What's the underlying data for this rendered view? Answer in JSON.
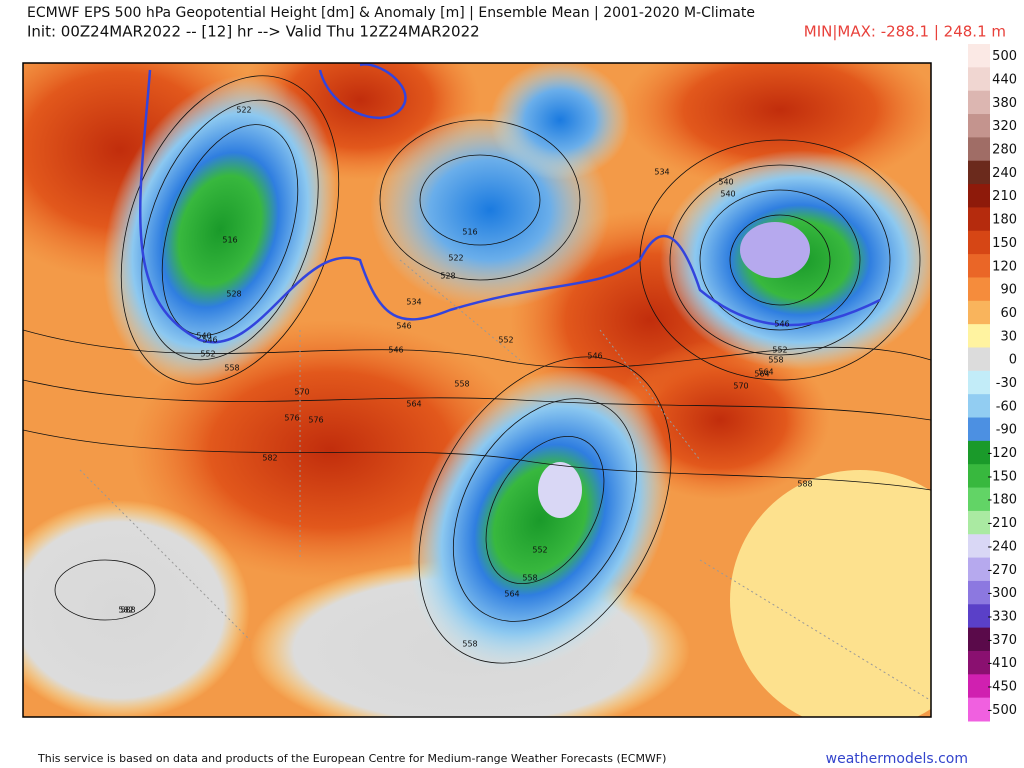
{
  "header": {
    "title": "ECMWF EPS 500 hPa Geopotential Height [dm] & Anomaly [m] | Ensemble Mean | 2001-2020 M-Climate",
    "subtitle": "Init: 00Z24MAR2022 -- [12] hr --> Valid Thu 12Z24MAR2022",
    "minmax": "MIN|MAX: -288.1 | 248.1 m"
  },
  "colorbar": {
    "levels": [
      500,
      440,
      380,
      320,
      280,
      240,
      210,
      180,
      150,
      120,
      90,
      60,
      30,
      0,
      -30,
      -60,
      -90,
      -120,
      -150,
      -180,
      -210,
      -240,
      -270,
      -300,
      -330,
      -370,
      -410,
      -450,
      -500
    ],
    "colors": [
      "#fbe9e5",
      "#f0d6d1",
      "#dcb6b1",
      "#c4948e",
      "#a06d66",
      "#6b2a1c",
      "#8e1a0a",
      "#b52b0d",
      "#d64615",
      "#ea6627",
      "#f58c3c",
      "#f9b45c",
      "#fff3a0",
      "#dcdcdc",
      "#c2ecf8",
      "#92cdf2",
      "#4c90e2",
      "#1a9a2a",
      "#38b83e",
      "#62d466",
      "#aaeaa2",
      "#d9d7f5",
      "#b6a9ee",
      "#8c78e0",
      "#5a40c8",
      "#5a0a4a",
      "#8a1070",
      "#d020b0",
      "#f060e0"
    ]
  },
  "map": {
    "contour_labels": [
      522,
      516,
      528,
      540,
      546,
      552,
      558,
      534,
      540,
      546,
      552,
      558,
      564,
      570,
      576,
      582,
      588,
      516,
      522,
      528,
      534,
      546,
      552,
      558,
      564,
      546,
      540,
      546,
      552,
      558,
      564,
      570,
      582,
      588,
      576,
      558,
      564
    ]
  },
  "footer": {
    "credit": "This service is based on data and products of the European Centre for Medium-range Weather Forecasts (ECMWF)",
    "site": "weathermodels.com"
  }
}
